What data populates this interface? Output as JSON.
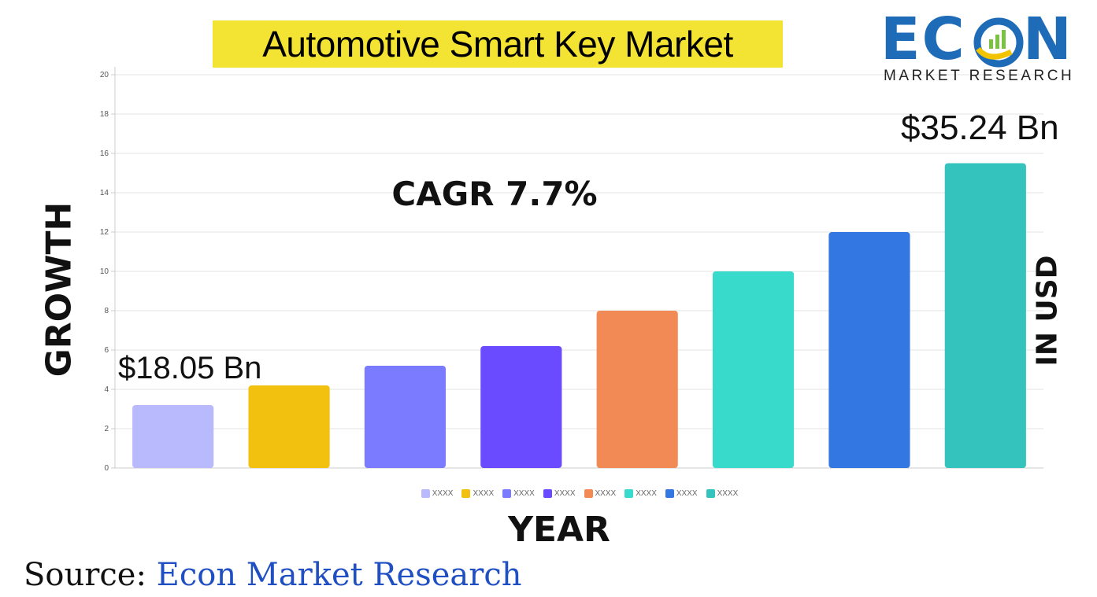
{
  "header": {
    "title": "Automotive Smart Key Market"
  },
  "logo": {
    "word_left": "EC",
    "word_right": "N",
    "subtitle": "MARKET RESEARCH",
    "colors": {
      "word": "#1e6bb8",
      "swoosh": "#f2c400",
      "bars": "#7cc242"
    }
  },
  "annotations": {
    "cagr": "CAGR 7.7%",
    "start_value": "$18.05 Bn",
    "end_value": "$35.24 Bn"
  },
  "source": {
    "label": "Source:",
    "name": "Econ Market Research"
  },
  "chart_data": {
    "type": "bar",
    "ylabel": "GROWTH",
    "ylabel_right": "IN USD",
    "xlabel": "YEAR",
    "ylim": [
      0,
      20
    ],
    "yticks": [
      0,
      2,
      4,
      6,
      8,
      10,
      12,
      14,
      16,
      18,
      20
    ],
    "grid": true,
    "legend_position": "bottom",
    "categories": [
      "XXXX",
      "XXXX",
      "XXXX",
      "XXXX",
      "XXXX",
      "XXXX",
      "XXXX",
      "XXXX"
    ],
    "values": [
      3.2,
      4.2,
      5.2,
      6.2,
      8.0,
      10.0,
      12.0,
      15.5
    ],
    "colors": [
      "#b9b9fd",
      "#f2c10f",
      "#7b7bff",
      "#6a4bff",
      "#f28a56",
      "#38dacb",
      "#3377e3",
      "#34c3bd"
    ]
  }
}
